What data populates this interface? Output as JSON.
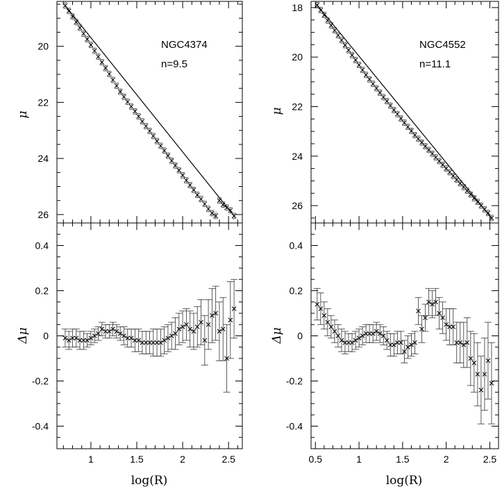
{
  "chart_data": [
    {
      "type": "scatter",
      "panel": "top-left",
      "xlabel": "",
      "ylabel": "μ",
      "xlim": [
        0.63,
        2.65
      ],
      "ylim": [
        26.3,
        18.4
      ],
      "y_inverted": true,
      "y_ticks": [
        "20",
        "22",
        "24",
        "26"
      ],
      "annotations": [
        "NGC4374",
        "n=9.5"
      ],
      "model_line": {
        "x": [
          0.72,
          2.56
        ],
        "y": [
          18.55,
          26.05
        ]
      },
      "x": [
        0.72,
        0.76,
        0.8,
        0.84,
        0.88,
        0.92,
        0.96,
        1.0,
        1.04,
        1.08,
        1.12,
        1.16,
        1.2,
        1.24,
        1.28,
        1.32,
        1.36,
        1.4,
        1.44,
        1.48,
        1.52,
        1.56,
        1.6,
        1.64,
        1.68,
        1.72,
        1.76,
        1.8,
        1.84,
        1.88,
        1.92,
        1.96,
        2.0,
        2.04,
        2.08,
        2.12,
        2.16,
        2.2,
        2.24,
        2.28,
        2.32,
        2.36,
        2.4,
        2.44,
        2.48,
        2.52,
        2.56
      ],
      "y": [
        18.55,
        18.74,
        18.94,
        19.14,
        19.34,
        19.55,
        19.75,
        19.95,
        20.16,
        20.37,
        20.57,
        20.78,
        20.99,
        21.2,
        21.41,
        21.62,
        21.8,
        21.98,
        22.15,
        22.32,
        22.5,
        22.68,
        22.85,
        23.02,
        23.2,
        23.38,
        23.55,
        23.72,
        23.9,
        24.08,
        24.25,
        24.42,
        24.6,
        24.78,
        24.95,
        25.12,
        25.3,
        25.45,
        25.62,
        25.8,
        25.95,
        26.05,
        25.5,
        25.65,
        25.75,
        25.85,
        26.05
      ]
    },
    {
      "type": "scatter",
      "panel": "bottom-left",
      "xlabel": "log(R)",
      "ylabel": "Δμ",
      "xlim": [
        0.63,
        2.65
      ],
      "ylim": [
        -0.5,
        0.5
      ],
      "x_ticks": [
        "1",
        "1.5",
        "2",
        "2.5"
      ],
      "y_ticks": [
        "0.4",
        "0.2",
        "0",
        "-0.2",
        "-0.4"
      ],
      "x": [
        0.72,
        0.76,
        0.8,
        0.84,
        0.88,
        0.92,
        0.96,
        1.0,
        1.04,
        1.08,
        1.12,
        1.16,
        1.2,
        1.24,
        1.28,
        1.32,
        1.36,
        1.4,
        1.44,
        1.48,
        1.52,
        1.56,
        1.6,
        1.64,
        1.68,
        1.72,
        1.76,
        1.8,
        1.84,
        1.88,
        1.92,
        1.96,
        2.0,
        2.04,
        2.08,
        2.12,
        2.16,
        2.2,
        2.24,
        2.28,
        2.32,
        2.36,
        2.4,
        2.44,
        2.48,
        2.52,
        2.56
      ],
      "y": [
        -0.01,
        -0.02,
        -0.01,
        -0.01,
        -0.02,
        -0.02,
        -0.02,
        -0.01,
        0.0,
        0.01,
        0.03,
        0.02,
        0.02,
        0.03,
        0.02,
        0.01,
        0.0,
        -0.01,
        -0.01,
        -0.02,
        -0.02,
        -0.03,
        -0.03,
        -0.03,
        -0.03,
        -0.03,
        -0.03,
        -0.02,
        -0.01,
        0.0,
        0.01,
        0.03,
        0.04,
        0.05,
        0.03,
        0.02,
        0.04,
        0.06,
        -0.02,
        0.05,
        0.09,
        0.1,
        0.02,
        0.03,
        -0.1,
        0.07,
        0.12
      ],
      "err": [
        0.04,
        0.04,
        0.04,
        0.04,
        0.04,
        0.04,
        0.03,
        0.03,
        0.03,
        0.03,
        0.03,
        0.03,
        0.03,
        0.03,
        0.03,
        0.03,
        0.04,
        0.04,
        0.04,
        0.05,
        0.05,
        0.05,
        0.05,
        0.05,
        0.06,
        0.06,
        0.06,
        0.06,
        0.06,
        0.06,
        0.07,
        0.07,
        0.07,
        0.07,
        0.08,
        0.08,
        0.09,
        0.1,
        0.11,
        0.11,
        0.12,
        0.12,
        0.13,
        0.14,
        0.15,
        0.17,
        0.13
      ]
    },
    {
      "type": "scatter",
      "panel": "top-right",
      "xlabel": "",
      "ylabel": "μ",
      "xlim": [
        0.45,
        2.6
      ],
      "ylim": [
        26.7,
        17.75
      ],
      "y_inverted": true,
      "y_ticks": [
        "18",
        "20",
        "22",
        "24",
        "26"
      ],
      "annotations": [
        "NGC4552",
        "n=11.1"
      ],
      "model_line": {
        "x": [
          0.52,
          2.52
        ],
        "y": [
          17.9,
          26.5
        ]
      },
      "x": [
        0.52,
        0.56,
        0.6,
        0.64,
        0.68,
        0.72,
        0.76,
        0.8,
        0.84,
        0.88,
        0.92,
        0.96,
        1.0,
        1.04,
        1.08,
        1.12,
        1.16,
        1.2,
        1.24,
        1.28,
        1.32,
        1.36,
        1.4,
        1.44,
        1.48,
        1.52,
        1.56,
        1.6,
        1.64,
        1.68,
        1.72,
        1.76,
        1.8,
        1.84,
        1.88,
        1.92,
        1.96,
        2.0,
        2.04,
        2.08,
        2.12,
        2.16,
        2.2,
        2.24,
        2.28,
        2.32,
        2.36,
        2.4,
        2.44,
        2.48,
        2.52
      ],
      "y": [
        17.9,
        18.1,
        18.3,
        18.52,
        18.72,
        18.92,
        19.12,
        19.32,
        19.52,
        19.72,
        19.92,
        20.12,
        20.32,
        20.52,
        20.72,
        20.9,
        21.08,
        21.26,
        21.44,
        21.62,
        21.78,
        21.96,
        22.14,
        22.3,
        22.48,
        22.65,
        22.82,
        22.98,
        23.15,
        23.3,
        23.45,
        23.6,
        23.75,
        23.9,
        24.05,
        24.2,
        24.35,
        24.5,
        24.65,
        24.8,
        24.95,
        25.1,
        25.25,
        25.4,
        25.55,
        25.7,
        25.85,
        26.0,
        26.15,
        26.3,
        26.5
      ]
    },
    {
      "type": "scatter",
      "panel": "bottom-right",
      "xlabel": "log(R)",
      "ylabel": "Δμ",
      "xlim": [
        0.45,
        2.6
      ],
      "ylim": [
        -0.5,
        0.5
      ],
      "x_ticks": [
        "0.5",
        "1",
        "1.5",
        "2",
        "2.5"
      ],
      "y_ticks": [
        "0.4",
        "0.2",
        "0",
        "-0.2",
        "-0.4"
      ],
      "x": [
        0.52,
        0.56,
        0.6,
        0.64,
        0.68,
        0.72,
        0.76,
        0.8,
        0.84,
        0.88,
        0.92,
        0.96,
        1.0,
        1.04,
        1.08,
        1.12,
        1.16,
        1.2,
        1.24,
        1.28,
        1.32,
        1.36,
        1.4,
        1.44,
        1.48,
        1.52,
        1.56,
        1.6,
        1.64,
        1.68,
        1.72,
        1.76,
        1.8,
        1.84,
        1.88,
        1.92,
        1.96,
        2.0,
        2.04,
        2.08,
        2.12,
        2.16,
        2.2,
        2.24,
        2.28,
        2.32,
        2.36,
        2.4,
        2.44,
        2.48,
        2.52
      ],
      "y": [
        0.14,
        0.12,
        0.09,
        0.06,
        0.04,
        0.02,
        0.0,
        -0.02,
        -0.03,
        -0.03,
        -0.03,
        -0.02,
        -0.01,
        0.0,
        0.01,
        0.01,
        0.01,
        0.02,
        0.01,
        0.0,
        -0.02,
        -0.04,
        -0.04,
        -0.03,
        -0.03,
        -0.07,
        -0.05,
        -0.04,
        -0.03,
        0.11,
        0.03,
        0.08,
        0.15,
        0.14,
        0.15,
        0.1,
        0.08,
        0.05,
        0.04,
        0.04,
        -0.03,
        -0.03,
        -0.04,
        -0.03,
        -0.1,
        -0.12,
        -0.17,
        -0.24,
        -0.17,
        -0.11,
        -0.21
      ],
      "err": [
        0.07,
        0.07,
        0.06,
        0.06,
        0.05,
        0.05,
        0.05,
        0.05,
        0.05,
        0.04,
        0.04,
        0.04,
        0.04,
        0.04,
        0.04,
        0.04,
        0.04,
        0.04,
        0.04,
        0.04,
        0.04,
        0.05,
        0.05,
        0.05,
        0.05,
        0.05,
        0.05,
        0.05,
        0.05,
        0.06,
        0.06,
        0.06,
        0.06,
        0.06,
        0.06,
        0.07,
        0.07,
        0.07,
        0.08,
        0.08,
        0.09,
        0.09,
        0.1,
        0.11,
        0.12,
        0.13,
        0.14,
        0.15,
        0.16,
        0.17,
        0.18
      ]
    }
  ]
}
